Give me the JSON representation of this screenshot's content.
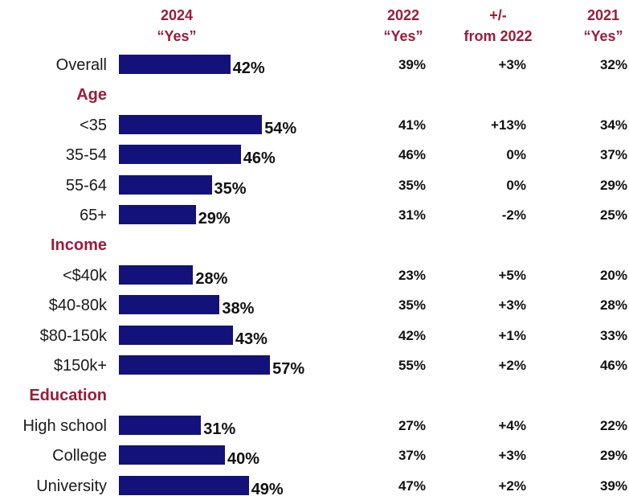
{
  "headers": {
    "y2024": [
      "2024",
      "“Yes”"
    ],
    "y2022": [
      "2022",
      "“Yes”"
    ],
    "diff": [
      "+/-",
      "from 2022"
    ],
    "y2021": [
      "2021",
      "“Yes”"
    ]
  },
  "colors": {
    "bar": "#12127a",
    "accent": "#9b1b3a"
  },
  "chart_data": {
    "type": "bar",
    "orientation": "horizontal",
    "axis_max": 60,
    "rows": [
      {
        "kind": "item",
        "label": "Overall",
        "value": 42,
        "value_label": "42%",
        "y2022": "39%",
        "diff": "+3%",
        "y2021": "32%"
      },
      {
        "kind": "section",
        "label": "Age"
      },
      {
        "kind": "item",
        "label": "<35",
        "value": 54,
        "value_label": "54%",
        "y2022": "41%",
        "diff": "+13%",
        "y2021": "34%"
      },
      {
        "kind": "item",
        "label": "35-54",
        "value": 46,
        "value_label": "46%",
        "y2022": "46%",
        "diff": "0%",
        "y2021": "37%"
      },
      {
        "kind": "item",
        "label": "55-64",
        "value": 35,
        "value_label": "35%",
        "y2022": "35%",
        "diff": "0%",
        "y2021": "29%"
      },
      {
        "kind": "item",
        "label": "65+",
        "value": 29,
        "value_label": "29%",
        "y2022": "31%",
        "diff": "-2%",
        "y2021": "25%"
      },
      {
        "kind": "section",
        "label": "Income"
      },
      {
        "kind": "item",
        "label": "<$40k",
        "value": 28,
        "value_label": "28%",
        "y2022": "23%",
        "diff": "+5%",
        "y2021": "20%"
      },
      {
        "kind": "item",
        "label": "$40-80k",
        "value": 38,
        "value_label": "38%",
        "y2022": "35%",
        "diff": "+3%",
        "y2021": "28%"
      },
      {
        "kind": "item",
        "label": "$80-150k",
        "value": 43,
        "value_label": "43%",
        "y2022": "42%",
        "diff": "+1%",
        "y2021": "33%"
      },
      {
        "kind": "item",
        "label": "$150k+",
        "value": 57,
        "value_label": "57%",
        "y2022": "55%",
        "diff": "+2%",
        "y2021": "46%"
      },
      {
        "kind": "section",
        "label": "Education"
      },
      {
        "kind": "item",
        "label": "High school",
        "value": 31,
        "value_label": "31%",
        "y2022": "27%",
        "diff": "+4%",
        "y2021": "22%"
      },
      {
        "kind": "item",
        "label": "College",
        "value": 40,
        "value_label": "40%",
        "y2022": "37%",
        "diff": "+3%",
        "y2021": "29%"
      },
      {
        "kind": "item",
        "label": "University",
        "value": 49,
        "value_label": "49%",
        "y2022": "47%",
        "diff": "+2%",
        "y2021": "39%"
      }
    ]
  }
}
